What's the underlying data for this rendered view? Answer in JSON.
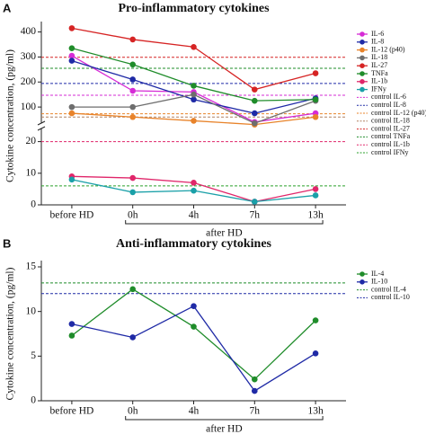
{
  "chart_data": [
    {
      "type": "line",
      "label": "A",
      "title": "Pro-inflammatory cytokines",
      "y_label": "Cytokine concentration, (pg/ml)",
      "categories": [
        "before HD",
        "0h",
        "4h",
        "7h",
        "13h"
      ],
      "group_label": "after HD",
      "ylim": [
        0,
        420
      ],
      "ybreak": 25,
      "yticks": [
        0,
        10,
        20,
        100,
        200,
        300,
        400
      ],
      "series": [
        {
          "name": "IL-6",
          "color": "#d62bd6",
          "values": [
            305,
            165,
            160,
            40,
            75
          ]
        },
        {
          "name": "IL-8",
          "color": "#1f2aa6",
          "values": [
            285,
            210,
            130,
            75,
            135
          ]
        },
        {
          "name": "IL-12 (p40)",
          "color": "#e8832a",
          "values": [
            75,
            60,
            45,
            30,
            60
          ]
        },
        {
          "name": "IL-18",
          "color": "#6e6e6e",
          "values": [
            100,
            100,
            150,
            35,
            125
          ]
        },
        {
          "name": "IL-27",
          "color": "#d62424",
          "values": [
            415,
            370,
            340,
            170,
            235
          ]
        },
        {
          "name": "TNFa",
          "color": "#1f8c2a",
          "values": [
            335,
            270,
            185,
            125,
            130
          ]
        },
        {
          "name": "IL-1b",
          "color": "#e0266a",
          "values": [
            9,
            8.5,
            7,
            1,
            5
          ]
        },
        {
          "name": "IFNy",
          "color": "#1aa0a8",
          "values": [
            8,
            4,
            4.5,
            1,
            3
          ]
        }
      ],
      "reference_lines": [
        {
          "name": "control IL-6",
          "color": "#d62bd6",
          "value": 147
        },
        {
          "name": "control IL-8",
          "color": "#1f2aa6",
          "value": 194
        },
        {
          "name": "control IL-12 (p40)",
          "color": "#e8832a",
          "value": 73
        },
        {
          "name": "control IL-18",
          "color": "#b08060",
          "value": 60
        },
        {
          "name": "control IL-27",
          "color": "#d62424",
          "value": 299
        },
        {
          "name": "control TNFa",
          "color": "#1f8c2a",
          "value": 255
        },
        {
          "name": "control IL-1b",
          "color": "#e0266a",
          "value": 20
        },
        {
          "name": "control IFNy",
          "color": "#2aa02a",
          "value": 6
        }
      ]
    },
    {
      "type": "line",
      "label": "B",
      "title": "Anti-inflammatory cytokines",
      "y_label": "Cytokine concentration, (pg/ml)",
      "categories": [
        "before HD",
        "0h",
        "4h",
        "7h",
        "13h"
      ],
      "group_label": "after HD",
      "ylim": [
        0,
        15
      ],
      "yticks": [
        0,
        5,
        10,
        15
      ],
      "series": [
        {
          "name": "IL-4",
          "color": "#1f8c2a",
          "values": [
            7.3,
            12.5,
            8.3,
            2.4,
            9.0
          ]
        },
        {
          "name": "IL-10",
          "color": "#1f2aa6",
          "values": [
            8.6,
            7.1,
            10.6,
            1.1,
            5.3
          ]
        }
      ],
      "reference_lines": [
        {
          "name": "control IL-4",
          "color": "#1f8c2a",
          "value": 13.2
        },
        {
          "name": "control IL-10",
          "color": "#1f2aa6",
          "value": 12.0
        }
      ]
    }
  ]
}
